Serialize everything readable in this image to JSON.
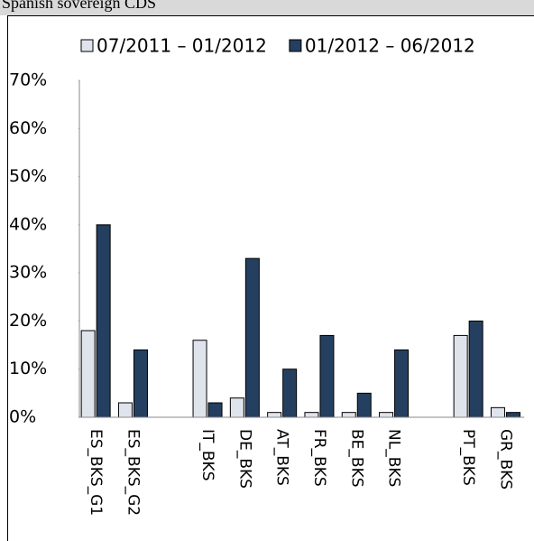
{
  "chart_data": {
    "type": "bar",
    "title": "Spanish sovereign CDS",
    "categories": [
      "ES_BKS_G1",
      "ES_BKS_G2",
      null,
      "IT_BKS",
      "DE_BKS",
      "AT_BKS",
      "FR_BKS",
      "BE_BKS",
      "NL_BKS",
      null,
      "PT_BKS",
      "GR_BKS"
    ],
    "series": [
      {
        "name": "07/2011 – 01/2012",
        "color": "#dfe3ec",
        "values": [
          18,
          3,
          null,
          16,
          4,
          1,
          1,
          1,
          1,
          null,
          17,
          2
        ]
      },
      {
        "name": "01/2012 – 06/2012",
        "color": "#243f60",
        "values": [
          40,
          14,
          null,
          3,
          33,
          10,
          17,
          5,
          14,
          null,
          20,
          1
        ]
      }
    ],
    "ylim": [
      0,
      70
    ],
    "yticks": [
      {
        "value": 0,
        "label": "0%"
      },
      {
        "value": 10,
        "label": "10%"
      },
      {
        "value": 20,
        "label": "20%"
      },
      {
        "value": 30,
        "label": "30%"
      },
      {
        "value": 40,
        "label": "40%"
      },
      {
        "value": 50,
        "label": "50%"
      },
      {
        "value": 60,
        "label": "60%"
      },
      {
        "value": 70,
        "label": "70%"
      }
    ],
    "grid": false,
    "legend": "top"
  }
}
